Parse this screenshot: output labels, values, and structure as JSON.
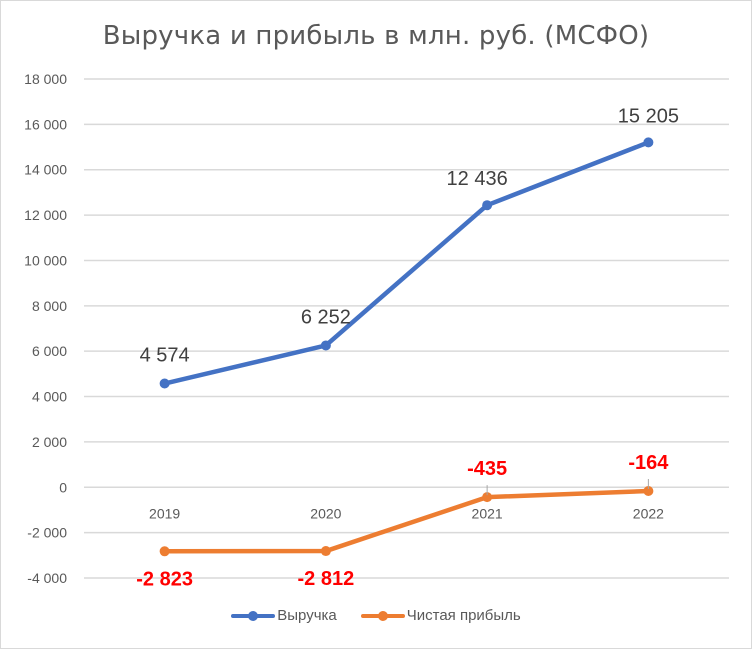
{
  "chart_data": {
    "type": "line",
    "title": "Выручка и прибыль в млн. руб. (МСФО)",
    "categories": [
      "2019",
      "2020",
      "2021",
      "2022"
    ],
    "series": [
      {
        "name": "Выручка",
        "color": "#4472c4",
        "values": [
          4574,
          6252,
          12436,
          15205
        ],
        "labels": [
          "4 574",
          "6 252",
          "12 436",
          "15 205"
        ],
        "label_color": "#404040"
      },
      {
        "name": "Чистая прибыль",
        "color": "#ed7d31",
        "values": [
          -2823,
          -2812,
          -435,
          -164
        ],
        "labels": [
          "-2 823",
          "-2 812",
          "-435",
          "-164"
        ],
        "label_color": "#ff0000"
      }
    ],
    "xlabel": "",
    "ylabel": "",
    "ylim": [
      -4000,
      18000
    ],
    "yticks": [
      18000,
      16000,
      14000,
      12000,
      10000,
      8000,
      6000,
      4000,
      2000,
      0,
      -2000,
      -4000
    ],
    "ytick_labels": [
      "18 000",
      "16 000",
      "14 000",
      "12 000",
      "10 000",
      "8 000",
      "6 000",
      "4 000",
      "2 000",
      "0",
      "-2 000",
      "-4 000"
    ],
    "grid": true,
    "legend_position": "bottom"
  },
  "title": "Выручка и прибыль в млн. руб. (МСФО)",
  "legend": {
    "revenue": "Выручка",
    "net_profit": "Чистая прибыль"
  }
}
